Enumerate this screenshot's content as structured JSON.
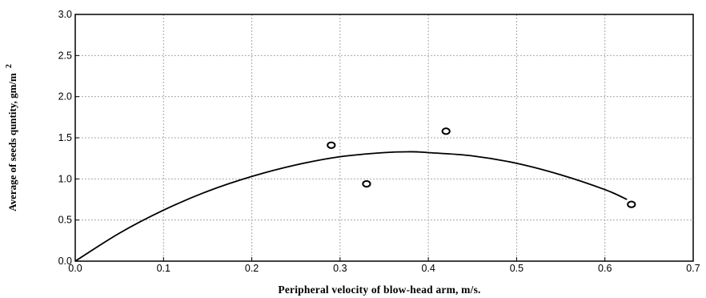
{
  "chart_data": {
    "type": "scatter",
    "title": "",
    "xlabel": "Peripheral velocity of blow-head arm, m/s.",
    "ylabel": "Average of seeds quntity, gm/m",
    "ylabel_superscript": "2",
    "xlim": [
      0.0,
      0.7
    ],
    "ylim": [
      0.0,
      3.0
    ],
    "x_ticks": [
      "0.0",
      "0.1",
      "0.2",
      "0.3",
      "0.4",
      "0.5",
      "0.6",
      "0.7"
    ],
    "y_ticks": [
      "0.0",
      "0.5",
      "1.0",
      "1.5",
      "2.0",
      "2.5",
      "3.0"
    ],
    "grid": true,
    "series": [
      {
        "type": "scatter",
        "marker": "open-circle",
        "points": [
          {
            "x": 0.29,
            "y": 1.41
          },
          {
            "x": 0.33,
            "y": 0.94
          },
          {
            "x": 0.42,
            "y": 1.58
          },
          {
            "x": 0.63,
            "y": 0.69
          }
        ]
      },
      {
        "type": "line",
        "style": "fitted-curve",
        "points": [
          {
            "x": 0.0,
            "y": 0.0
          },
          {
            "x": 0.05,
            "y": 0.34
          },
          {
            "x": 0.1,
            "y": 0.62
          },
          {
            "x": 0.15,
            "y": 0.85
          },
          {
            "x": 0.2,
            "y": 1.03
          },
          {
            "x": 0.25,
            "y": 1.17
          },
          {
            "x": 0.3,
            "y": 1.27
          },
          {
            "x": 0.35,
            "y": 1.32
          },
          {
            "x": 0.38,
            "y": 1.33
          },
          {
            "x": 0.4,
            "y": 1.32
          },
          {
            "x": 0.45,
            "y": 1.28
          },
          {
            "x": 0.5,
            "y": 1.19
          },
          {
            "x": 0.55,
            "y": 1.05
          },
          {
            "x": 0.6,
            "y": 0.87
          },
          {
            "x": 0.625,
            "y": 0.75
          }
        ]
      }
    ]
  }
}
